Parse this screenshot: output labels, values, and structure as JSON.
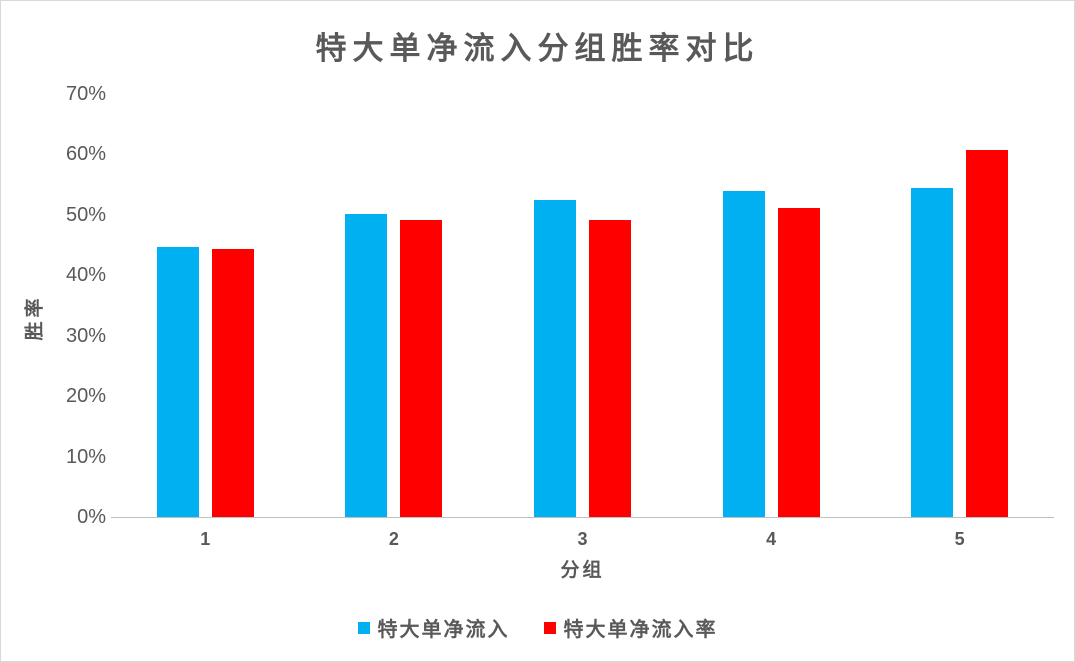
{
  "title": "特大单净流入分组胜率对比",
  "chart_data": {
    "type": "bar",
    "title": "特大单净流入分组胜率对比",
    "categories": [
      "1",
      "2",
      "3",
      "4",
      "5"
    ],
    "series": [
      {
        "name": "特大单净流入",
        "color": "#00B0F0",
        "values": [
          44.7,
          50.1,
          52.5,
          53.9,
          54.5
        ]
      },
      {
        "name": "特大单净流入率",
        "color": "#FF0000",
        "values": [
          44.3,
          49.1,
          49.1,
          51.2,
          60.7
        ]
      }
    ],
    "xlabel": "分组",
    "ylabel": "胜率",
    "ylim": [
      0,
      70
    ],
    "ytick_step": 10,
    "ytick_labels": [
      "0%",
      "10%",
      "20%",
      "30%",
      "40%",
      "50%",
      "60%",
      "70%"
    ],
    "unit": "%",
    "grid": false,
    "legend_position": "bottom"
  },
  "colors": {
    "series_blue": "#00B0F0",
    "series_red": "#FF0000",
    "text": "#595959",
    "axis_line": "#BFBFBF",
    "border": "#D9D9D9",
    "background": "#FFFFFF"
  }
}
